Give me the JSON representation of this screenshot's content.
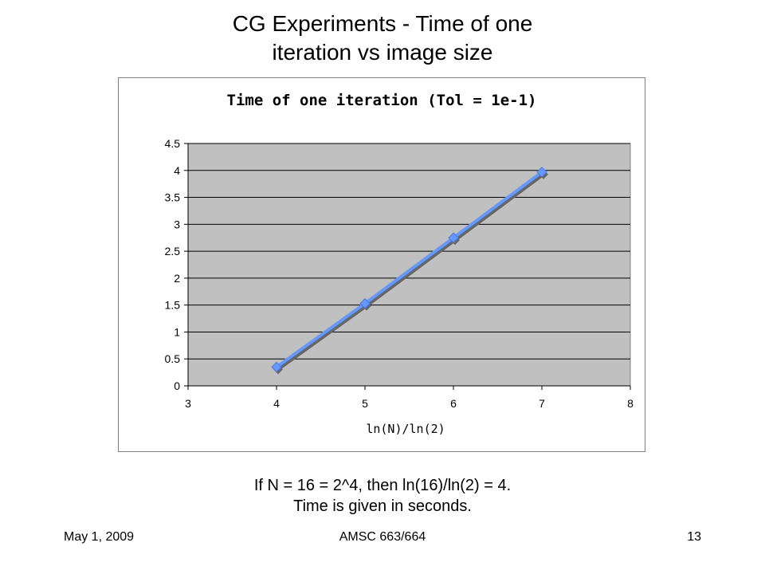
{
  "slide": {
    "title_line1": "CG Experiments - Time of one",
    "title_line2": "iteration vs image size",
    "caption_line1": "If N = 16 = 2^4, then ln(16)/ln(2) = 4.",
    "caption_line2": "Time is given in seconds.",
    "footer_left": "May 1, 2009",
    "footer_center": "AMSC 663/664",
    "footer_right": "13"
  },
  "chart_data": {
    "type": "line",
    "title": "Time of one iteration (Tol = 1e-1)",
    "xlabel": "ln(N)/ln(2)",
    "ylabel": "",
    "xlim": [
      3,
      8
    ],
    "ylim": [
      0,
      4.5
    ],
    "x_ticks": [
      "3",
      "4",
      "5",
      "6",
      "7",
      "8"
    ],
    "y_ticks": [
      "0",
      "0.5",
      "1",
      "1.5",
      "2",
      "2.5",
      "3",
      "3.5",
      "4",
      "4.5"
    ],
    "grid": "horizontal",
    "plot_background": "#c0c0c0",
    "series": [
      {
        "color": "#6699ff",
        "x": [
          4,
          5,
          6,
          7
        ],
        "y": [
          0.35,
          1.53,
          2.75,
          3.97
        ]
      }
    ]
  }
}
